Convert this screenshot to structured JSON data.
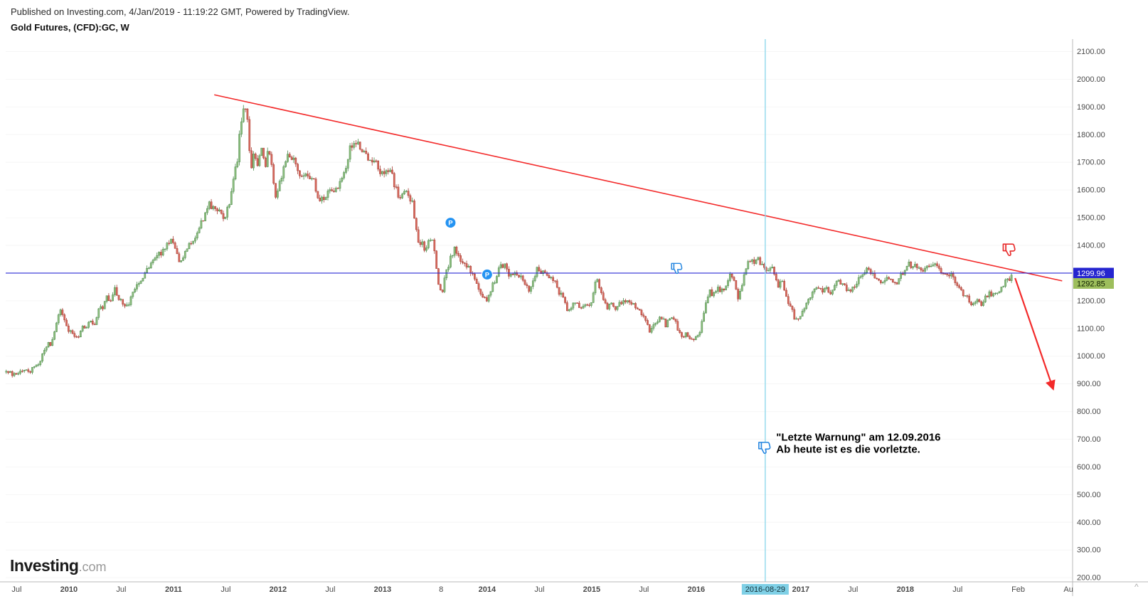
{
  "header": {
    "published_line": "Published on Investing.com, 4/Jan/2019 - 11:19:22 GMT, Powered by TradingView.",
    "symbol_line": "Gold Futures, (CFD):GC, W"
  },
  "logo": {
    "main": "Investing",
    "suffix": ".com"
  },
  "icons": {
    "axis_resize": "^"
  },
  "colors": {
    "up_fill": "#8fbf7f",
    "up_stroke": "#4b8a4b",
    "down_fill": "#d96a5e",
    "down_stroke": "#a63d34",
    "trend_red": "#f32a2a",
    "price_line_blue": "#2a2ad4",
    "vline_cyan": "#8fd8ec",
    "vline_badge": "#7fd0e6",
    "badge_blue_bg": "#2525cf",
    "badge_green_bg": "#9dbe5c",
    "pin_blue": "#2493f2",
    "thumb_blue": "#2586e0",
    "thumb_red": "#e82c2c",
    "axis_text": "#4a4a4a",
    "annotation_text": "#000000"
  },
  "chart_data": {
    "type": "candlestick",
    "title": "Gold Futures, (CFD):GC, W",
    "symbol": "(CFD):GC",
    "interval": "W",
    "xlim": [
      2009.395,
      2019.6
    ],
    "ylim": [
      185,
      2145
    ],
    "y_ticks": [
      2100,
      2000,
      1900,
      1800,
      1700,
      1600,
      1500,
      1400,
      1300,
      1200,
      1100,
      1000,
      900,
      800,
      700,
      600,
      500,
      400,
      300,
      200
    ],
    "x_ticks": [
      {
        "label": "Jul",
        "t": 2009.5
      },
      {
        "label": "2010",
        "t": 2010.0
      },
      {
        "label": "Jul",
        "t": 2010.5
      },
      {
        "label": "2011",
        "t": 2011.0
      },
      {
        "label": "Jul",
        "t": 2011.5
      },
      {
        "label": "2012",
        "t": 2012.0
      },
      {
        "label": "Jul",
        "t": 2012.5
      },
      {
        "label": "2013",
        "t": 2013.0
      },
      {
        "label": "8",
        "t": 2013.56
      },
      {
        "label": "2014",
        "t": 2014.0
      },
      {
        "label": "Jul",
        "t": 2014.5
      },
      {
        "label": "2015",
        "t": 2015.0
      },
      {
        "label": "Jul",
        "t": 2015.5
      },
      {
        "label": "2016",
        "t": 2016.0
      },
      {
        "label": "2017",
        "t": 2017.0
      },
      {
        "label": "Jul",
        "t": 2017.5
      },
      {
        "label": "2018",
        "t": 2018.0
      },
      {
        "label": "Jul",
        "t": 2018.5
      },
      {
        "label": "Feb",
        "t": 2019.08
      },
      {
        "label": "Au",
        "t": 2019.56
      }
    ],
    "highlighted_x_tick": {
      "label": "2016-08-29",
      "t": 2016.66
    },
    "price_line": {
      "value": 1299.96,
      "label": "1299.96"
    },
    "last_price": {
      "value": 1292.85,
      "label": "1292.85",
      "direction": "up"
    },
    "vertical_line": {
      "t": 2016.66,
      "date": "2016-08-29"
    },
    "trend_line": {
      "from": {
        "t": 2011.39,
        "price": 1944
      },
      "to": {
        "t": 2019.5,
        "price": 1272
      }
    },
    "arrow": {
      "from": {
        "t": 2019.05,
        "price": 1282
      },
      "to": {
        "t": 2019.41,
        "price": 886
      }
    },
    "markers": [
      {
        "type": "pin",
        "label": "P",
        "t": 2013.65,
        "price": 1482
      },
      {
        "type": "pin",
        "label": "P",
        "t": 2014.0,
        "price": 1295
      },
      {
        "type": "thumb-down",
        "color": "blue",
        "t": 2015.82,
        "price": 1315,
        "size": 22
      },
      {
        "type": "thumb-down",
        "color": "blue",
        "t": 2016.66,
        "price": 667,
        "size": 24
      },
      {
        "type": "thumb-down",
        "color": "red",
        "t": 2019.0,
        "price": 1382,
        "size": 25
      }
    ],
    "annotation": {
      "t": 2016.765,
      "price": 695,
      "lines": [
        "\"Letzte Warnung\" am 12.09.2016",
        "Ab heute ist es die vorletzte."
      ]
    },
    "weekly_close_anchors": [
      [
        2009.4,
        952
      ],
      [
        2009.44,
        938
      ],
      [
        2009.48,
        930
      ],
      [
        2009.52,
        934
      ],
      [
        2009.56,
        952
      ],
      [
        2009.6,
        946
      ],
      [
        2009.64,
        950
      ],
      [
        2009.68,
        956
      ],
      [
        2009.72,
        978
      ],
      [
        2009.75,
        1006
      ],
      [
        2009.79,
        1046
      ],
      [
        2009.83,
        1042
      ],
      [
        2009.87,
        1096
      ],
      [
        2009.9,
        1142
      ],
      [
        2009.92,
        1168
      ],
      [
        2009.96,
        1126
      ],
      [
        2010.0,
        1096
      ],
      [
        2010.04,
        1082
      ],
      [
        2010.08,
        1066
      ],
      [
        2010.12,
        1104
      ],
      [
        2010.16,
        1108
      ],
      [
        2010.2,
        1134
      ],
      [
        2010.24,
        1116
      ],
      [
        2010.28,
        1160
      ],
      [
        2010.32,
        1178
      ],
      [
        2010.36,
        1212
      ],
      [
        2010.4,
        1204
      ],
      [
        2010.44,
        1242
      ],
      [
        2010.48,
        1212
      ],
      [
        2010.52,
        1192
      ],
      [
        2010.56,
        1180
      ],
      [
        2010.6,
        1214
      ],
      [
        2010.64,
        1246
      ],
      [
        2010.68,
        1276
      ],
      [
        2010.72,
        1298
      ],
      [
        2010.75,
        1312
      ],
      [
        2010.79,
        1340
      ],
      [
        2010.83,
        1350
      ],
      [
        2010.87,
        1372
      ],
      [
        2010.91,
        1386
      ],
      [
        2010.95,
        1402
      ],
      [
        2011.0,
        1420
      ],
      [
        2011.03,
        1362
      ],
      [
        2011.06,
        1336
      ],
      [
        2011.1,
        1356
      ],
      [
        2011.14,
        1408
      ],
      [
        2011.18,
        1424
      ],
      [
        2011.22,
        1432
      ],
      [
        2011.26,
        1476
      ],
      [
        2011.3,
        1512
      ],
      [
        2011.33,
        1556
      ],
      [
        2011.37,
        1540
      ],
      [
        2011.41,
        1530
      ],
      [
        2011.45,
        1514
      ],
      [
        2011.49,
        1502
      ],
      [
        2011.53,
        1546
      ],
      [
        2011.57,
        1626
      ],
      [
        2011.61,
        1710
      ],
      [
        2011.64,
        1820
      ],
      [
        2011.67,
        1886
      ],
      [
        2011.7,
        1900
      ],
      [
        2011.72,
        1774
      ],
      [
        2011.74,
        1654
      ],
      [
        2011.76,
        1722
      ],
      [
        2011.78,
        1742
      ],
      [
        2011.8,
        1680
      ],
      [
        2011.83,
        1754
      ],
      [
        2011.86,
        1724
      ],
      [
        2011.88,
        1686
      ],
      [
        2011.9,
        1740
      ],
      [
        2011.92,
        1720
      ],
      [
        2011.94,
        1680
      ],
      [
        2011.96,
        1606
      ],
      [
        2011.98,
        1566
      ],
      [
        2012.0,
        1598
      ],
      [
        2012.02,
        1630
      ],
      [
        2012.05,
        1668
      ],
      [
        2012.09,
        1734
      ],
      [
        2012.13,
        1720
      ],
      [
        2012.17,
        1706
      ],
      [
        2012.21,
        1660
      ],
      [
        2012.25,
        1666
      ],
      [
        2012.29,
        1640
      ],
      [
        2012.33,
        1656
      ],
      [
        2012.37,
        1590
      ],
      [
        2012.41,
        1562
      ],
      [
        2012.45,
        1574
      ],
      [
        2012.49,
        1598
      ],
      [
        2012.53,
        1584
      ],
      [
        2012.57,
        1616
      ],
      [
        2012.61,
        1646
      ],
      [
        2012.65,
        1690
      ],
      [
        2012.69,
        1756
      ],
      [
        2012.72,
        1772
      ],
      [
        2012.75,
        1770
      ],
      [
        2012.79,
        1750
      ],
      [
        2012.83,
        1722
      ],
      [
        2012.87,
        1710
      ],
      [
        2012.91,
        1700
      ],
      [
        2012.95,
        1688
      ],
      [
        2013.0,
        1660
      ],
      [
        2013.04,
        1656
      ],
      [
        2013.08,
        1666
      ],
      [
        2013.12,
        1606
      ],
      [
        2013.16,
        1580
      ],
      [
        2013.2,
        1590
      ],
      [
        2013.24,
        1600
      ],
      [
        2013.28,
        1556
      ],
      [
        2013.31,
        1500
      ],
      [
        2013.34,
        1402
      ],
      [
        2013.37,
        1420
      ],
      [
        2013.41,
        1386
      ],
      [
        2013.45,
        1440
      ],
      [
        2013.48,
        1410
      ],
      [
        2013.5,
        1386
      ],
      [
        2013.52,
        1292
      ],
      [
        2013.55,
        1230
      ],
      [
        2013.58,
        1222
      ],
      [
        2013.6,
        1310
      ],
      [
        2013.63,
        1330
      ],
      [
        2013.66,
        1370
      ],
      [
        2013.69,
        1390
      ],
      [
        2013.72,
        1376
      ],
      [
        2013.75,
        1326
      ],
      [
        2013.79,
        1336
      ],
      [
        2013.83,
        1316
      ],
      [
        2013.87,
        1286
      ],
      [
        2013.91,
        1242
      ],
      [
        2013.95,
        1210
      ],
      [
        2014.0,
        1202
      ],
      [
        2014.04,
        1250
      ],
      [
        2014.08,
        1262
      ],
      [
        2014.12,
        1320
      ],
      [
        2014.16,
        1334
      ],
      [
        2014.2,
        1300
      ],
      [
        2014.24,
        1292
      ],
      [
        2014.28,
        1300
      ],
      [
        2014.32,
        1286
      ],
      [
        2014.36,
        1250
      ],
      [
        2014.4,
        1244
      ],
      [
        2014.44,
        1280
      ],
      [
        2014.48,
        1320
      ],
      [
        2014.52,
        1306
      ],
      [
        2014.56,
        1292
      ],
      [
        2014.6,
        1286
      ],
      [
        2014.64,
        1280
      ],
      [
        2014.68,
        1230
      ],
      [
        2014.72,
        1212
      ],
      [
        2014.76,
        1170
      ],
      [
        2014.8,
        1162
      ],
      [
        2014.84,
        1196
      ],
      [
        2014.88,
        1176
      ],
      [
        2014.92,
        1184
      ],
      [
        2014.96,
        1186
      ],
      [
        2015.0,
        1188
      ],
      [
        2015.03,
        1280
      ],
      [
        2015.07,
        1260
      ],
      [
        2015.11,
        1200
      ],
      [
        2015.15,
        1180
      ],
      [
        2015.19,
        1200
      ],
      [
        2015.23,
        1176
      ],
      [
        2015.27,
        1186
      ],
      [
        2015.31,
        1200
      ],
      [
        2015.35,
        1190
      ],
      [
        2015.39,
        1184
      ],
      [
        2015.43,
        1170
      ],
      [
        2015.47,
        1160
      ],
      [
        2015.51,
        1130
      ],
      [
        2015.55,
        1090
      ],
      [
        2015.59,
        1120
      ],
      [
        2015.63,
        1132
      ],
      [
        2015.67,
        1140
      ],
      [
        2015.71,
        1110
      ],
      [
        2015.75,
        1136
      ],
      [
        2015.79,
        1140
      ],
      [
        2015.83,
        1086
      ],
      [
        2015.86,
        1066
      ],
      [
        2015.9,
        1076
      ],
      [
        2015.95,
        1060
      ],
      [
        2016.0,
        1062
      ],
      [
        2016.04,
        1090
      ],
      [
        2016.08,
        1170
      ],
      [
        2016.12,
        1236
      ],
      [
        2016.16,
        1220
      ],
      [
        2016.2,
        1252
      ],
      [
        2016.24,
        1232
      ],
      [
        2016.28,
        1240
      ],
      [
        2016.32,
        1290
      ],
      [
        2016.36,
        1270
      ],
      [
        2016.4,
        1214
      ],
      [
        2016.44,
        1260
      ],
      [
        2016.48,
        1320
      ],
      [
        2016.51,
        1356
      ],
      [
        2016.54,
        1340
      ],
      [
        2016.58,
        1350
      ],
      [
        2016.62,
        1340
      ],
      [
        2016.66,
        1310
      ],
      [
        2016.7,
        1326
      ],
      [
        2016.74,
        1314
      ],
      [
        2016.78,
        1250
      ],
      [
        2016.82,
        1270
      ],
      [
        2016.86,
        1220
      ],
      [
        2016.9,
        1176
      ],
      [
        2016.95,
        1130
      ],
      [
        2017.0,
        1152
      ],
      [
        2017.04,
        1180
      ],
      [
        2017.08,
        1210
      ],
      [
        2017.12,
        1230
      ],
      [
        2017.16,
        1250
      ],
      [
        2017.2,
        1240
      ],
      [
        2017.24,
        1246
      ],
      [
        2017.28,
        1230
      ],
      [
        2017.32,
        1260
      ],
      [
        2017.36,
        1270
      ],
      [
        2017.4,
        1254
      ],
      [
        2017.44,
        1240
      ],
      [
        2017.48,
        1226
      ],
      [
        2017.52,
        1260
      ],
      [
        2017.56,
        1280
      ],
      [
        2017.6,
        1310
      ],
      [
        2017.64,
        1320
      ],
      [
        2017.68,
        1300
      ],
      [
        2017.72,
        1280
      ],
      [
        2017.76,
        1270
      ],
      [
        2017.8,
        1274
      ],
      [
        2017.84,
        1280
      ],
      [
        2017.88,
        1260
      ],
      [
        2017.92,
        1270
      ],
      [
        2017.96,
        1290
      ],
      [
        2018.0,
        1310
      ],
      [
        2018.03,
        1340
      ],
      [
        2018.06,
        1324
      ],
      [
        2018.1,
        1330
      ],
      [
        2018.14,
        1320
      ],
      [
        2018.18,
        1316
      ],
      [
        2018.22,
        1330
      ],
      [
        2018.26,
        1322
      ],
      [
        2018.3,
        1336
      ],
      [
        2018.34,
        1314
      ],
      [
        2018.38,
        1296
      ],
      [
        2018.42,
        1300
      ],
      [
        2018.46,
        1280
      ],
      [
        2018.5,
        1250
      ],
      [
        2018.54,
        1230
      ],
      [
        2018.58,
        1220
      ],
      [
        2018.62,
        1190
      ],
      [
        2018.66,
        1200
      ],
      [
        2018.7,
        1196
      ],
      [
        2018.74,
        1190
      ],
      [
        2018.78,
        1220
      ],
      [
        2018.82,
        1226
      ],
      [
        2018.86,
        1220
      ],
      [
        2018.9,
        1240
      ],
      [
        2018.94,
        1256
      ],
      [
        2018.98,
        1278
      ],
      [
        2019.0,
        1284
      ],
      [
        2019.02,
        1292.85
      ]
    ]
  }
}
